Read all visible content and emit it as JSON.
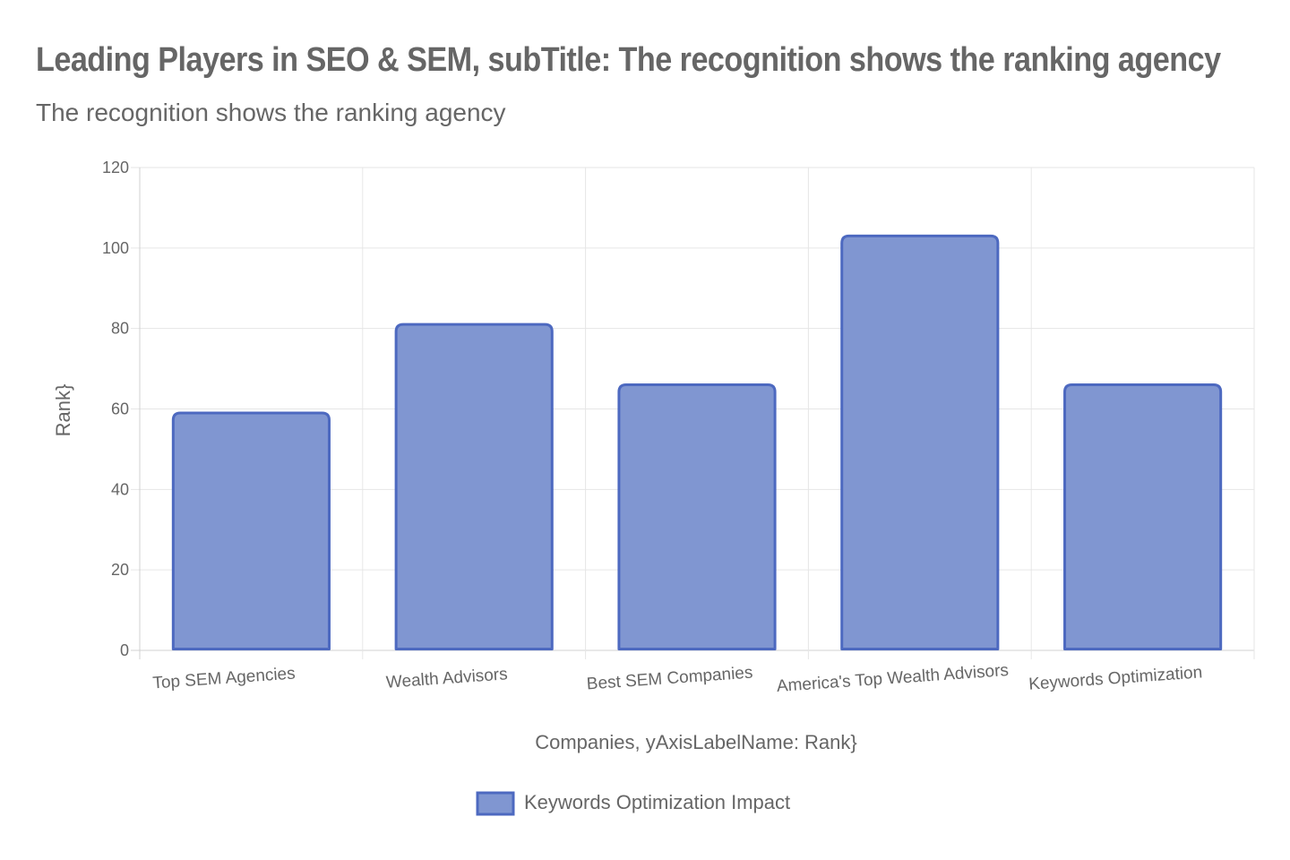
{
  "chart_data": {
    "type": "bar",
    "title": "Leading Players in SEO & SEM, subTitle: The recognition shows the ranking agency",
    "subtitle": "The recognition shows the ranking agency",
    "xlabel": "Companies, yAxisLabelName: Rank}",
    "ylabel": "Rank}",
    "categories": [
      "Top SEM Agencies",
      "Wealth Advisors",
      "Best SEM Companies",
      "America's Top Wealth Advisors",
      "Keywords Optimization"
    ],
    "series": [
      {
        "name": "Keywords Optimization Impact",
        "values": [
          59,
          81,
          66,
          103,
          66
        ],
        "fill_color": "#8096d1",
        "border_color": "#4d69c0"
      }
    ],
    "ylim": [
      0,
      120
    ],
    "yticks": [
      0,
      20,
      40,
      60,
      80,
      100,
      120
    ],
    "grid": true,
    "legend_position": "bottom"
  }
}
